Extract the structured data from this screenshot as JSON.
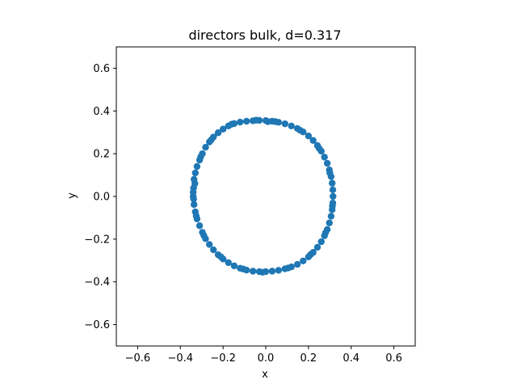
{
  "chart_data": {
    "type": "scatter",
    "title": "directors bulk, d=0.317",
    "xlabel": "x",
    "ylabel": "y",
    "xlim": [
      -0.7,
      0.7
    ],
    "ylim": [
      -0.7,
      0.7
    ],
    "xticks": [
      -0.6,
      -0.4,
      -0.2,
      0.0,
      0.2,
      0.4,
      0.6
    ],
    "yticks": [
      -0.6,
      -0.4,
      -0.2,
      0.0,
      0.2,
      0.4,
      0.6
    ],
    "xtick_labels": [
      "−0.6",
      "−0.4",
      "−0.2",
      "0.0",
      "0.2",
      "0.4",
      "0.6"
    ],
    "ytick_labels": [
      "−0.6",
      "−0.4",
      "−0.2",
      "0.0",
      "0.2",
      "0.4",
      "0.6"
    ],
    "grid": false,
    "marker_color": "#1f77b4",
    "points": [
      [
        -0.34,
        0.0
      ],
      [
        -0.338,
        0.04
      ],
      [
        -0.336,
        0.08
      ],
      [
        -0.33,
        0.11
      ],
      [
        -0.322,
        0.14
      ],
      [
        -0.31,
        0.17
      ],
      [
        -0.297,
        0.2
      ],
      [
        -0.282,
        0.23
      ],
      [
        -0.264,
        0.255
      ],
      [
        -0.245,
        0.278
      ],
      [
        -0.223,
        0.298
      ],
      [
        -0.2,
        0.315
      ],
      [
        -0.175,
        0.33
      ],
      [
        -0.148,
        0.341
      ],
      [
        -0.12,
        0.348
      ],
      [
        -0.09,
        0.352
      ],
      [
        -0.06,
        0.354
      ],
      [
        -0.03,
        0.356
      ],
      [
        0.0,
        0.355
      ],
      [
        0.03,
        0.352
      ],
      [
        0.06,
        0.347
      ],
      [
        0.09,
        0.34
      ],
      [
        0.12,
        0.33
      ],
      [
        0.148,
        0.318
      ],
      [
        0.175,
        0.302
      ],
      [
        0.2,
        0.283
      ],
      [
        0.222,
        0.262
      ],
      [
        0.242,
        0.238
      ],
      [
        0.26,
        0.212
      ],
      [
        0.275,
        0.184
      ],
      [
        0.288,
        0.155
      ],
      [
        0.298,
        0.124
      ],
      [
        0.306,
        0.093
      ],
      [
        0.311,
        0.062
      ],
      [
        0.314,
        0.031
      ],
      [
        0.315,
        0.0
      ],
      [
        0.314,
        -0.031
      ],
      [
        0.311,
        -0.062
      ],
      [
        0.306,
        -0.093
      ],
      [
        0.298,
        -0.124
      ],
      [
        0.288,
        -0.155
      ],
      [
        0.275,
        -0.184
      ],
      [
        0.26,
        -0.212
      ],
      [
        0.242,
        -0.238
      ],
      [
        0.222,
        -0.262
      ],
      [
        0.2,
        -0.283
      ],
      [
        0.175,
        -0.302
      ],
      [
        0.148,
        -0.318
      ],
      [
        0.12,
        -0.33
      ],
      [
        0.09,
        -0.339
      ],
      [
        0.06,
        -0.346
      ],
      [
        0.03,
        -0.35
      ],
      [
        0.0,
        -0.352
      ],
      [
        -0.03,
        -0.352
      ],
      [
        -0.06,
        -0.35
      ],
      [
        -0.09,
        -0.345
      ],
      [
        -0.12,
        -0.336
      ],
      [
        -0.148,
        -0.325
      ],
      [
        -0.175,
        -0.31
      ],
      [
        -0.2,
        -0.293
      ],
      [
        -0.223,
        -0.273
      ],
      [
        -0.245,
        -0.25
      ],
      [
        -0.264,
        -0.225
      ],
      [
        -0.282,
        -0.198
      ],
      [
        -0.297,
        -0.168
      ],
      [
        -0.31,
        -0.137
      ],
      [
        -0.322,
        -0.105
      ],
      [
        -0.33,
        -0.072
      ],
      [
        -0.336,
        -0.038
      ],
      [
        -0.338,
        -0.012
      ],
      [
        -0.332,
        0.06
      ],
      [
        -0.305,
        0.185
      ],
      [
        -0.255,
        0.265
      ],
      [
        -0.16,
        0.338
      ],
      [
        -0.045,
        0.357
      ],
      [
        0.045,
        0.35
      ],
      [
        0.16,
        0.31
      ],
      [
        0.25,
        0.225
      ],
      [
        0.3,
        0.11
      ],
      [
        0.312,
        -0.045
      ],
      [
        0.28,
        -0.17
      ],
      [
        0.21,
        -0.272
      ],
      [
        0.105,
        -0.335
      ],
      [
        -0.015,
        -0.355
      ],
      [
        -0.105,
        -0.34
      ],
      [
        -0.21,
        -0.283
      ],
      [
        -0.29,
        -0.183
      ],
      [
        -0.326,
        -0.09
      ],
      [
        -0.34,
        0.02
      ],
      [
        0.01,
        0.35
      ]
    ]
  }
}
